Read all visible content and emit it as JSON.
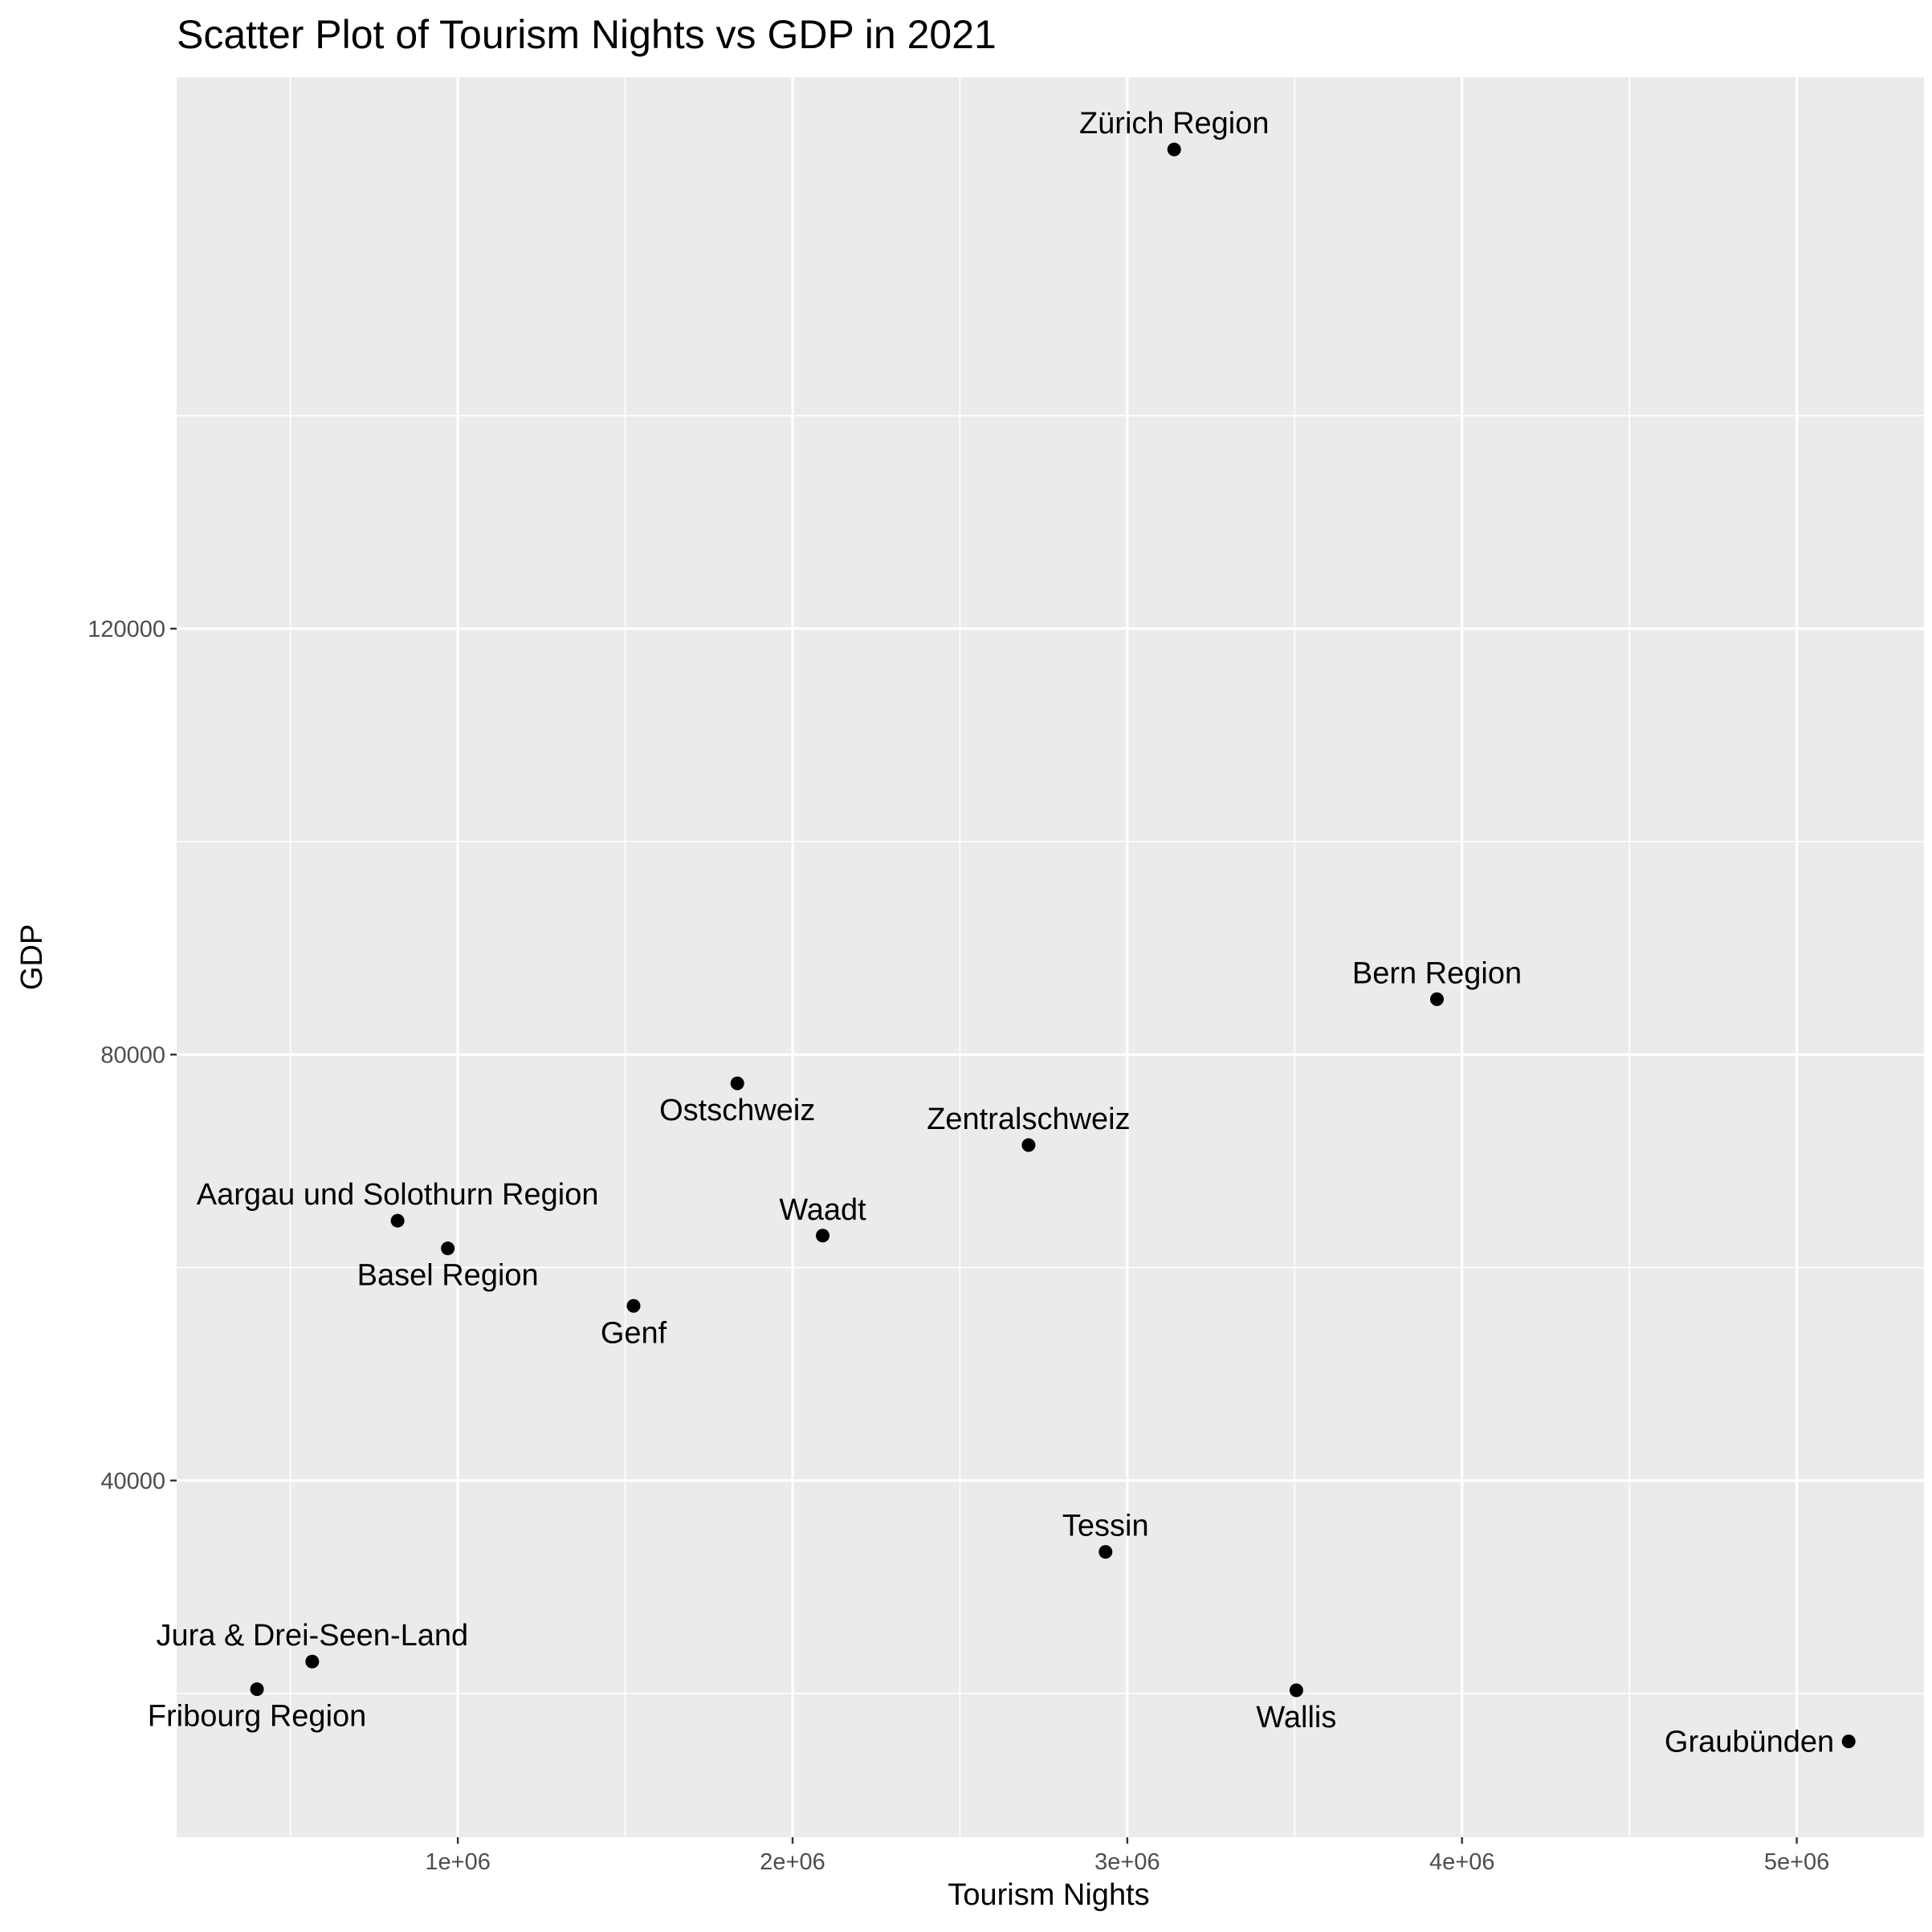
{
  "chart_data": {
    "type": "scatter",
    "title": "Scatter Plot of Tourism Nights vs GDP in 2021",
    "xlabel": "Tourism Nights",
    "ylabel": "GDP",
    "xlim": [
      160000,
      5380000
    ],
    "ylim": [
      6500,
      171800
    ],
    "x_ticks": [
      1000000,
      2000000,
      3000000,
      4000000,
      5000000
    ],
    "x_tick_labels": [
      "1e+06",
      "2e+06",
      "3e+06",
      "4e+06",
      "5e+06"
    ],
    "y_ticks": [
      40000,
      80000,
      120000
    ],
    "y_tick_labels": [
      "40000",
      "80000",
      "120000"
    ],
    "grid": true,
    "legend": "none",
    "point_color": "#000000",
    "panel_color": "#ebebeb",
    "grid_color": "#ffffff",
    "points": [
      {
        "label": "Zürich Region",
        "x": 3140000,
        "y": 165000,
        "label_pos": "above"
      },
      {
        "label": "Bern Region",
        "x": 3925000,
        "y": 85200,
        "label_pos": "above"
      },
      {
        "label": "Ostschweiz",
        "x": 1835000,
        "y": 77300,
        "label_pos": "below"
      },
      {
        "label": "Zentralschweiz",
        "x": 2705000,
        "y": 71500,
        "label_pos": "above"
      },
      {
        "label": "Aargau und Solothurn Region",
        "x": 820000,
        "y": 64400,
        "label_pos": "above"
      },
      {
        "label": "Basel Region",
        "x": 970000,
        "y": 61800,
        "label_pos": "below"
      },
      {
        "label": "Waadt",
        "x": 2090000,
        "y": 63000,
        "label_pos": "above"
      },
      {
        "label": "Genf",
        "x": 1525000,
        "y": 56400,
        "label_pos": "below"
      },
      {
        "label": "Tessin",
        "x": 2935000,
        "y": 33300,
        "label_pos": "above"
      },
      {
        "label": "Jura & Drei-Seen-Land",
        "x": 565000,
        "y": 23000,
        "label_pos": "above"
      },
      {
        "label": "Fribourg Region",
        "x": 400000,
        "y": 20400,
        "label_pos": "below"
      },
      {
        "label": "Wallis",
        "x": 3505000,
        "y": 20300,
        "label_pos": "below"
      },
      {
        "label": "Graubünden",
        "x": 5155000,
        "y": 15500,
        "label_pos": "left"
      }
    ]
  }
}
